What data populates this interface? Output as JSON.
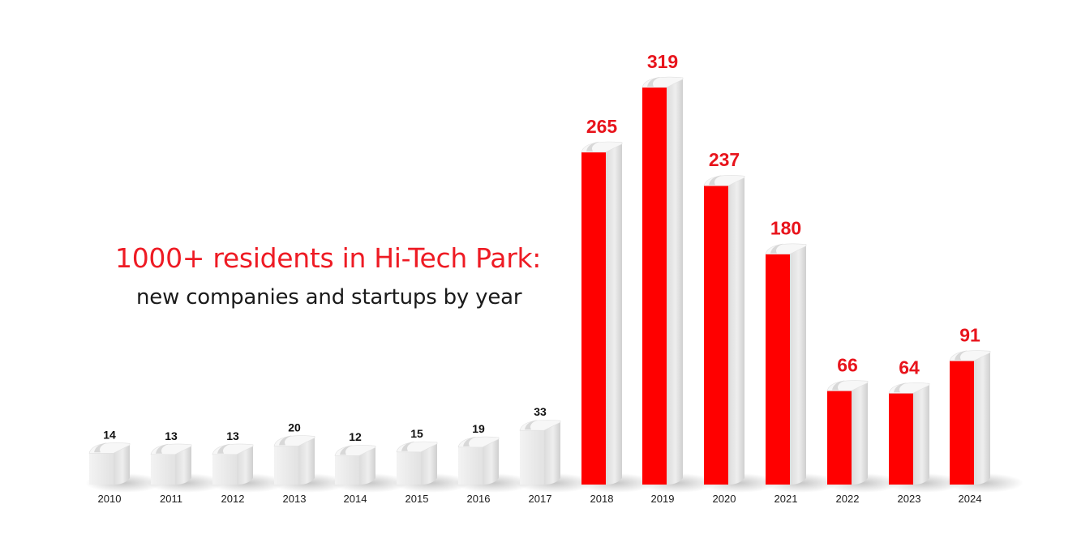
{
  "title": "1000+ residents in Hi-Tech Park:",
  "subtitle": "new companies and startups by year",
  "colors": {
    "accent": "#ff0000",
    "label_red": "#e8141c",
    "label_dark": "#111111",
    "bar_light": "#ececec",
    "bar_shade": "#d4d4d4"
  },
  "chart_data": {
    "type": "bar",
    "title": "1000+ residents in Hi-Tech Park:",
    "subtitle": "new companies and startups by year",
    "xlabel": "",
    "ylabel": "",
    "ylim": [
      0,
      319
    ],
    "grid": false,
    "categories": [
      "2010",
      "2011",
      "2012",
      "2013",
      "2014",
      "2015",
      "2016",
      "2017",
      "2018",
      "2019",
      "2020",
      "2021",
      "2022",
      "2023",
      "2024"
    ],
    "values": [
      14,
      13,
      13,
      20,
      12,
      15,
      19,
      33,
      265,
      319,
      237,
      180,
      66,
      64,
      91
    ],
    "highlighted": [
      false,
      false,
      false,
      false,
      false,
      false,
      false,
      false,
      true,
      true,
      true,
      true,
      true,
      true,
      true
    ]
  }
}
